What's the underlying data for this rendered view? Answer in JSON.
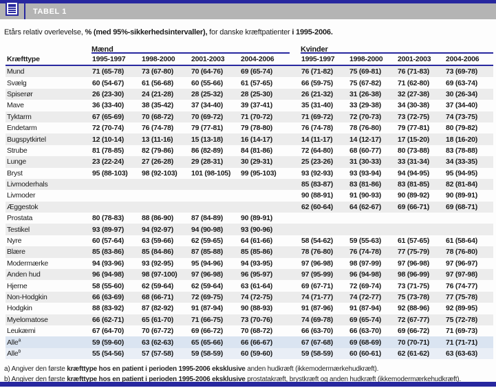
{
  "header": {
    "title": "TABEL 1",
    "icon": "table-icon"
  },
  "caption": {
    "part1": "Etårs relativ overlevelse, ",
    "part2_bold": "% (med 95%-sikkerhedsintervaller),",
    "part3": " for danske kræftpatienter ",
    "part4_bold": "i 1995-2006."
  },
  "table": {
    "row_header": "Kræfttype",
    "groups": [
      {
        "label": "Mænd",
        "periods": [
          "1995-1997",
          "1998-2000",
          "2001-2003",
          "2004-2006"
        ]
      },
      {
        "label": "Kvinder",
        "periods": [
          "1995-1997",
          "1998-2000",
          "2001-2003",
          "2004-2006"
        ]
      }
    ],
    "rows": [
      {
        "label": "Mund",
        "sup": "",
        "highlight": false,
        "maend": [
          "71 (65-78)",
          "73 (67-80)",
          "70 (64-76)",
          "69 (65-74)"
        ],
        "kvinder": [
          "76 (71-82)",
          "75 (69-81)",
          "76 (71-83)",
          "73 (69-78)"
        ]
      },
      {
        "label": "Svælg",
        "sup": "",
        "highlight": false,
        "maend": [
          "60 (54-67)",
          "61 (56-68)",
          "60 (55-66)",
          "61 (57-65)"
        ],
        "kvinder": [
          "66 (59-75)",
          "75 (67-82)",
          "71 (62-80)",
          "69 (63-74)"
        ]
      },
      {
        "label": "Spiserør",
        "sup": "",
        "highlight": false,
        "maend": [
          "26 (23-30)",
          "24 (21-28)",
          "28 (25-32)",
          "28 (25-30)"
        ],
        "kvinder": [
          "26 (21-32)",
          "31 (26-38)",
          "32 (27-38)",
          "30 (26-34)"
        ]
      },
      {
        "label": "Mave",
        "sup": "",
        "highlight": false,
        "maend": [
          "36 (33-40)",
          "38 (35-42)",
          "37 (34-40)",
          "39 (37-41)"
        ],
        "kvinder": [
          "35 (31-40)",
          "33 (29-38)",
          "34 (30-38)",
          "37 (34-40)"
        ]
      },
      {
        "label": "Tyktarm",
        "sup": "",
        "highlight": false,
        "maend": [
          "67 (65-69)",
          "70 (68-72)",
          "70 (69-72)",
          "71 (70-72)"
        ],
        "kvinder": [
          "71 (69-72)",
          "72 (70-73)",
          "73 (72-75)",
          "74 (73-75)"
        ]
      },
      {
        "label": "Endetarm",
        "sup": "",
        "highlight": false,
        "maend": [
          "72 (70-74)",
          "76 (74-78)",
          "79 (77-81)",
          "79 (78-80)"
        ],
        "kvinder": [
          "76 (74-78)",
          "78 (76-80)",
          "79 (77-81)",
          "80 (79-82)"
        ]
      },
      {
        "label": "Bugspytkirtel",
        "sup": "",
        "highlight": false,
        "maend": [
          "12 (10-14)",
          "13 (11-16)",
          "15 (13-18)",
          "16 (14-17)"
        ],
        "kvinder": [
          "14 (11-17)",
          "14 (12-17)",
          "17 (15-20)",
          "18 (16-20)"
        ]
      },
      {
        "label": "Strube",
        "sup": "",
        "highlight": false,
        "maend": [
          "81 (78-85)",
          "82 (79-86)",
          "86 (82-89)",
          "84 (81-86)"
        ],
        "kvinder": [
          "72 (64-80)",
          "68 (60-77)",
          "80 (73-88)",
          "83 (78-88)"
        ]
      },
      {
        "label": "Lunge",
        "sup": "",
        "highlight": false,
        "maend": [
          "23 (22-24)",
          "27 (26-28)",
          "29 (28-31)",
          "30 (29-31)"
        ],
        "kvinder": [
          "25 (23-26)",
          "31 (30-33)",
          "33 (31-34)",
          "34 (33-35)"
        ]
      },
      {
        "label": "Bryst",
        "sup": "",
        "highlight": false,
        "maend": [
          "95 (88-103)",
          "98 (92-103)",
          "101 (98-105)",
          "99 (95-103)"
        ],
        "kvinder": [
          "93 (92-93)",
          "93 (93-94)",
          "94 (94-95)",
          "95 (94-95)"
        ]
      },
      {
        "label": "Livmoderhals",
        "sup": "",
        "highlight": false,
        "maend": [
          "",
          "",
          "",
          ""
        ],
        "kvinder": [
          "85 (83-87)",
          "83 (81-86)",
          "83 (81-85)",
          "82 (81-84)"
        ]
      },
      {
        "label": "Livmoder",
        "sup": "",
        "highlight": false,
        "maend": [
          "",
          "",
          "",
          ""
        ],
        "kvinder": [
          "90 (88-91)",
          "91 (90-93)",
          "90 (89-92)",
          "90 (89-91)"
        ]
      },
      {
        "label": "Æggestok",
        "sup": "",
        "highlight": false,
        "maend": [
          "",
          "",
          "",
          ""
        ],
        "kvinder": [
          "62 (60-64)",
          "64 (62-67)",
          "69 (66-71)",
          "69 (68-71)"
        ]
      },
      {
        "label": "Prostata",
        "sup": "",
        "highlight": false,
        "maend": [
          "80 (78-83)",
          "88 (86-90)",
          "87 (84-89)",
          "90 (89-91)"
        ],
        "kvinder": [
          "",
          "",
          "",
          ""
        ]
      },
      {
        "label": "Testikel",
        "sup": "",
        "highlight": false,
        "maend": [
          "93 (89-97)",
          "94 (92-97)",
          "94 (90-98)",
          "93 (90-96)"
        ],
        "kvinder": [
          "",
          "",
          "",
          ""
        ]
      },
      {
        "label": "Nyre",
        "sup": "",
        "highlight": false,
        "maend": [
          "60 (57-64)",
          "63 (59-66)",
          "62 (59-65)",
          "64 (61-66)"
        ],
        "kvinder": [
          "58 (54-62)",
          "59 (55-63)",
          "61 (57-65)",
          "61 (58-64)"
        ]
      },
      {
        "label": "Blære",
        "sup": "",
        "highlight": false,
        "maend": [
          "85 (83-86)",
          "85 (84-86)",
          "87 (85-88)",
          "85 (85-86)"
        ],
        "kvinder": [
          "78 (76-80)",
          "76 (74-78)",
          "77 (75-79)",
          "78 (76-80)"
        ]
      },
      {
        "label": "Modermærke",
        "sup": "",
        "highlight": false,
        "maend": [
          "94 (93-96)",
          "93 (92-95)",
          "95 (94-96)",
          "94 (93-95)"
        ],
        "kvinder": [
          "97 (96-98)",
          "98 (97-99)",
          "97 (96-98)",
          "97 (96-97)"
        ]
      },
      {
        "label": "Anden hud",
        "sup": "",
        "highlight": false,
        "maend": [
          "96 (94-98)",
          "98 (97-100)",
          "97 (96-98)",
          "96 (95-97)"
        ],
        "kvinder": [
          "97 (95-99)",
          "96 (94-98)",
          "98 (96-99)",
          "97 (97-98)"
        ]
      },
      {
        "label": "Hjerne",
        "sup": "",
        "highlight": false,
        "maend": [
          "58 (55-60)",
          "62 (59-64)",
          "62 (59-64)",
          "63 (61-64)"
        ],
        "kvinder": [
          "69 (67-71)",
          "72 (69-74)",
          "73 (71-75)",
          "76 (74-77)"
        ]
      },
      {
        "label": "Non-Hodgkin",
        "sup": "",
        "highlight": false,
        "maend": [
          "66 (63-69)",
          "68 (66-71)",
          "72 (69-75)",
          "74 (72-75)"
        ],
        "kvinder": [
          "74 (71-77)",
          "74 (72-77)",
          "75 (73-78)",
          "77 (75-78)"
        ]
      },
      {
        "label": "Hodgkin",
        "sup": "",
        "highlight": false,
        "maend": [
          "88 (83-92)",
          "87 (82-92)",
          "91 (87-94)",
          "90 (88-93)"
        ],
        "kvinder": [
          "91 (87-96)",
          "91 (87-94)",
          "92 (88-96)",
          "92 (89-95)"
        ]
      },
      {
        "label": "Myelomatose",
        "sup": "",
        "highlight": false,
        "maend": [
          "66 (62-71)",
          "65 (61-70)",
          "71 (66-75)",
          "73 (70-76)"
        ],
        "kvinder": [
          "74 (69-78)",
          "69 (65-74)",
          "72 (67-77)",
          "75 (72-78)"
        ]
      },
      {
        "label": "Leukæmi",
        "sup": "",
        "highlight": false,
        "maend": [
          "67 (64-70)",
          "70 (67-72)",
          "69 (66-72)",
          "70 (68-72)"
        ],
        "kvinder": [
          "66 (63-70)",
          "66 (63-70)",
          "69 (66-72)",
          "71 (69-73)"
        ]
      },
      {
        "label": "Alle",
        "sup": "a",
        "highlight": true,
        "maend": [
          "59 (59-60)",
          "63 (62-63)",
          "65 (65-66)",
          "66 (66-67)"
        ],
        "kvinder": [
          "67 (67-68)",
          "69 (68-69)",
          "70 (70-71)",
          "71 (71-71)"
        ]
      },
      {
        "label": "Alle",
        "sup": "b",
        "highlight": true,
        "maend": [
          "55 (54-56)",
          "57 (57-58)",
          "59 (58-59)",
          "60 (59-60)"
        ],
        "kvinder": [
          "59 (58-59)",
          "60 (60-61)",
          "62 (61-62)",
          "63 (63-63)"
        ]
      }
    ]
  },
  "footnotes": [
    {
      "prefix": "a) Angiver den første ",
      "bold": "kræfttype hos en patient i perioden 1995-2006 eksklusive",
      "suffix": " anden hudkræft (ikkemodermærkehudkræft)."
    },
    {
      "prefix": "b) Angiver den første ",
      "bold": "kræfttype hos en patient i perioden 1995-2006 eksklusive",
      "suffix": " prostatakræft, brystkræft og anden hudkræft (ikkemodermærkehudkræft)."
    }
  ],
  "colors": {
    "navy": "#27279f",
    "bar_gray": "#b4b4b4",
    "stripe": "#ececec",
    "highlight_strong": "#dae4f1",
    "highlight_light": "#e9eef6"
  }
}
